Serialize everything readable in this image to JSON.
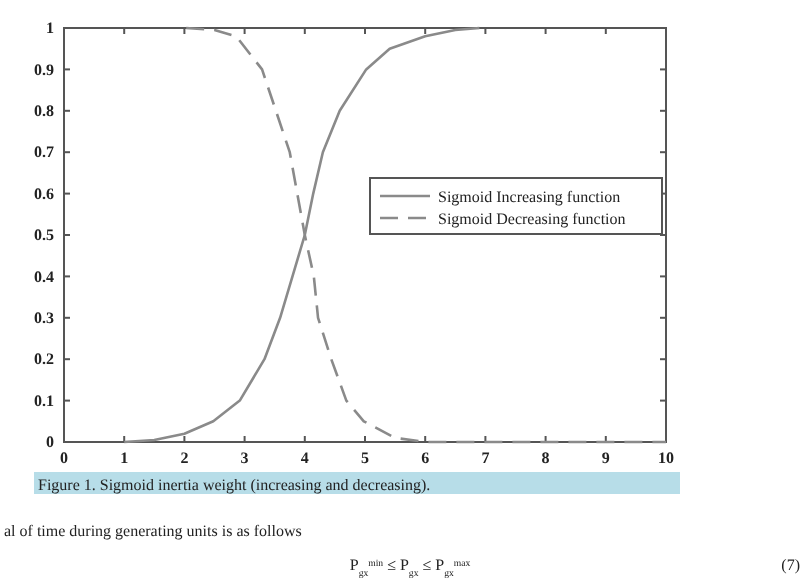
{
  "chart_data": {
    "type": "line",
    "xlim": [
      0,
      10
    ],
    "ylim": [
      0,
      1
    ],
    "xticks": [
      0,
      1,
      2,
      3,
      4,
      5,
      6,
      7,
      8,
      9,
      10
    ],
    "yticks": [
      0,
      0.1,
      0.2,
      0.3,
      0.4,
      0.5,
      0.6,
      0.7,
      0.8,
      0.9,
      1
    ],
    "grid": false,
    "legend": "right",
    "marker": "none",
    "series": [
      {
        "name": "Sigmoid Increasing function",
        "color": "#8a8a8a",
        "line_style": "solid",
        "x": [
          1,
          1.5,
          2,
          2.48,
          2.92,
          3.33,
          3.59,
          4,
          4.14,
          4.3,
          4.58,
          5.02,
          5.41,
          6,
          6.5,
          6.9
        ],
        "values": [
          0,
          0.005,
          0.02,
          0.05,
          0.1,
          0.2,
          0.3,
          0.5,
          0.6,
          0.7,
          0.8,
          0.9,
          0.95,
          0.98,
          0.995,
          1
        ]
      },
      {
        "name": "Sigmoid Decreasing function",
        "color": "#8a8a8a",
        "line_style": "dashed",
        "x": [
          2.03,
          2.5,
          2.86,
          3.29,
          3.52,
          3.75,
          4,
          4.15,
          4.22,
          4.44,
          4.69,
          4.98,
          5.5,
          6,
          7,
          8,
          9,
          10
        ],
        "values": [
          1,
          0.995,
          0.98,
          0.9,
          0.8,
          0.7,
          0.5,
          0.4,
          0.3,
          0.2,
          0.1,
          0.05,
          0.01,
          0,
          0,
          0,
          0,
          0
        ]
      }
    ],
    "annotations": [
      "Figure 1. Sigmoid inertia weight (increasing and decreasing).",
      "al of time during generating units is as follows",
      "P$_{gx}$$^{min}$ ≤ P$_{gx}$ ≤ P$_{gx}$$^{max}$",
      "(7)"
    ]
  }
}
